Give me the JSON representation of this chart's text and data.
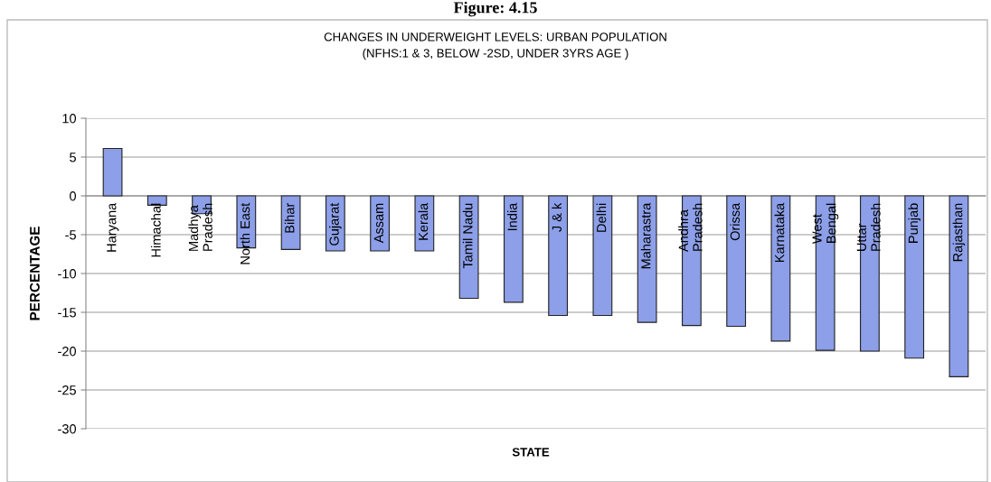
{
  "chart_data": {
    "type": "bar",
    "title": "CHANGES IN UNDERWEIGHT LEVELS: URBAN POPULATION\n(NFHS:1 & 3, BELOW -2SD, UNDER 3YRS AGE )",
    "annotations": [
      "Figure: 4.15"
    ],
    "xlabel": "STATE",
    "ylabel": "PERCENTAGE",
    "categories": [
      "Haryana",
      "Himachal",
      "Madhya\nPradesh",
      "North East",
      "Bihar",
      "Gujarat",
      "Assam",
      "Kerala",
      "Tamil Nadu",
      "India",
      "J & k",
      "Delhi",
      "Maharastra",
      "Andhra\nPradesh",
      "Orissa",
      "Karnataka",
      "West\nBengal",
      "Uttar\nPradesh",
      "Punjab",
      "Rajasthan"
    ],
    "values": [
      6.1,
      -1.2,
      -2.3,
      -6.7,
      -6.9,
      -7.1,
      -7.1,
      -7.1,
      -13.2,
      -13.7,
      -15.4,
      -15.4,
      -16.3,
      -16.7,
      -16.8,
      -18.7,
      -19.9,
      -20.0,
      -20.9,
      -23.3
    ],
    "color": "#8c9fe8",
    "ylim": [
      -30,
      10
    ],
    "yticks": [
      -30,
      -25,
      -20,
      -15,
      -10,
      -5,
      0,
      5,
      10
    ],
    "grid": "y"
  }
}
